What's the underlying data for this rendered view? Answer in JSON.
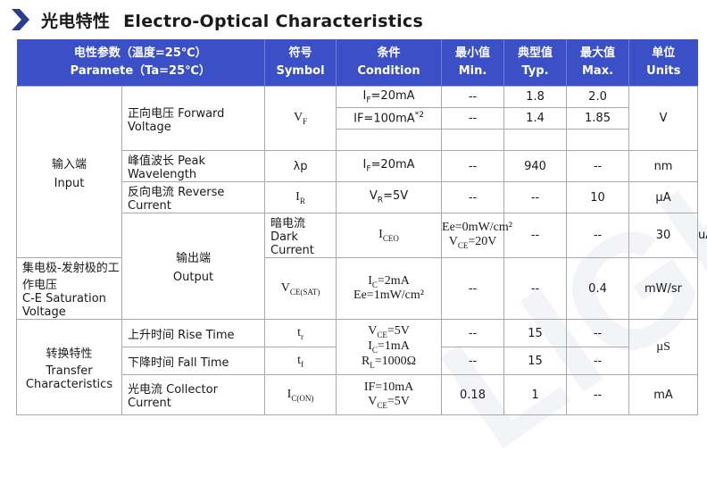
{
  "section": {
    "title_cn": "光电特性",
    "title_en": "Electro-Optical Characteristics"
  },
  "header": {
    "param_cn": "电性参数（温度=25℃）",
    "param_en": "Paramete（Ta=25℃）",
    "symbol_cn": "符号",
    "symbol_en": "Symbol",
    "cond_cn": "条件",
    "cond_en": "Condition",
    "min_cn": "最小值",
    "min_en": "Min.",
    "typ_cn": "典型值",
    "typ_en": "Typ.",
    "max_cn": "最大值",
    "max_en": "Max.",
    "unit_cn": "单位",
    "unit_en": "Units"
  },
  "groups": {
    "input_cn": "输入端",
    "input_en": "Input",
    "output_cn": "输出端",
    "output_en": "Output",
    "transfer_cn": "转换特性",
    "transfer_en1": "Transfer",
    "transfer_en2": "Characteristics"
  },
  "rows": {
    "vf": {
      "name": "正向电压 Forward Voltage",
      "symbol": "V",
      "symbol_sub": "F",
      "cond1": "I",
      "cond1_sub": "F",
      "cond1_rest": "=20mA",
      "min1": "--",
      "typ1": "1.8",
      "max1": "2.0",
      "cond2": "IF=100mA",
      "cond2_sup": "*2",
      "min2": "--",
      "typ2": "1.4",
      "max2": "1.85",
      "unit": "V"
    },
    "lp": {
      "name": "峰值波长 Peak Wavelength",
      "symbol": "λp",
      "cond": "I",
      "cond_sub": "F",
      "cond_rest": "=20mA",
      "min": "--",
      "typ": "940",
      "max": "--",
      "unit": "nm"
    },
    "ir": {
      "name": "反向电流 Reverse Current",
      "symbol": "I",
      "symbol_sub": "R",
      "cond": "V",
      "cond_sub": "R",
      "cond_rest": "=5V",
      "min": "--",
      "typ": "--",
      "max": "10",
      "unit": "µA"
    },
    "iceo": {
      "name": "暗电流 Dark Current",
      "symbol": "I",
      "symbol_sub": "CEO",
      "cond1": "Ee=0mW/cm²",
      "cond2": "V",
      "cond2_sub": "CE",
      "cond2_rest": "=20V",
      "min": "--",
      "typ": "--",
      "max": "30",
      "unit": "uA"
    },
    "vcesat": {
      "name_cn": "集电极-发射极的工作电压",
      "name_en": "C-E Saturation Voltage",
      "symbol": "V",
      "symbol_sub": "CE(SAT)",
      "cond1": "I",
      "cond1_sub": "C",
      "cond1_rest": "=2mA",
      "cond2": "Ee=1mW/cm²",
      "min": "--",
      "typ": "--",
      "max": "0.4",
      "unit": "mW/sr"
    },
    "tr": {
      "name": "上升时间 Rise Time",
      "symbol": "t",
      "symbol_sub": "r",
      "min": "--",
      "typ": "15",
      "max": "--"
    },
    "switch_cond": {
      "c1": "V",
      "c1_sub": "CE",
      "c1_rest": "=5V",
      "c2": "I",
      "c2_sub": "C",
      "c2_rest": "=1mA",
      "c3": "R",
      "c3_sub": "L",
      "c3_rest": "=1000Ω"
    },
    "switch_unit": "µS",
    "tf": {
      "name": "下降时间 Fall Time",
      "symbol": "t",
      "symbol_sub": "f",
      "min": "--",
      "typ": "15",
      "max": "--"
    },
    "ic": {
      "name": "光电流 Collector Current",
      "symbol": "I",
      "symbol_sub": "C(ON)",
      "cond1": "IF=10mA",
      "cond2": "V",
      "cond2_sub": "CE",
      "cond2_rest": "=5V",
      "min": "0.18",
      "typ": "1",
      "max": "--",
      "unit": "mA"
    }
  },
  "colors": {
    "header_bg": "#3b4fc6",
    "chevron": "#2b3a8c"
  },
  "icons": {
    "title": "chevron-right-icon"
  }
}
